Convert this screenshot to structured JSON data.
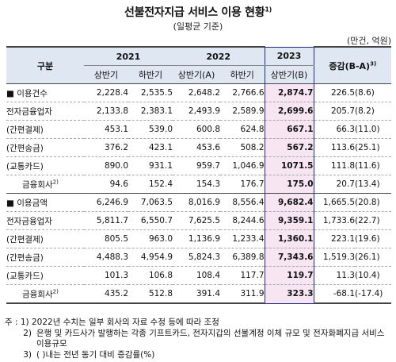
{
  "title": "선불전자지급 서비스 이용 현황",
  "title_note": "1)",
  "subtitle": "(일평균 기준)",
  "unit": "(만건, 억원)",
  "header": {
    "group": "구분",
    "y2021": "2021",
    "y2022": "2022",
    "y2023": "2023",
    "change": "증감(B-A)",
    "change_note": "3)",
    "h1": "상반기",
    "h2": "하반기",
    "h1a": "상반기(A)",
    "h1b": "상반기(B)"
  },
  "rows": [
    {
      "label": "■ 이용건수",
      "v": [
        "2,228.4",
        "2,535.5",
        "2,648.2",
        "2,766.6",
        "2,874.7",
        "226.5",
        "(8.6)"
      ]
    },
    {
      "label": "전자금융업자",
      "v": [
        "2,133.8",
        "2,383.1",
        "2,493.9",
        "2,589.9",
        "2,699.6",
        "205.7",
        "(8.2)"
      ]
    },
    {
      "label": "(간편결제)",
      "v": [
        "453.1",
        "539.0",
        "600.8",
        "624.8",
        "667.1",
        "66.3",
        "(11.0)"
      ]
    },
    {
      "label": "(간편송금)",
      "v": [
        "376.2",
        "423.1",
        "453.6",
        "508.2",
        "567.2",
        "113.6",
        "(25.1)"
      ]
    },
    {
      "label": "(교통카드)",
      "v": [
        "890.0",
        "931.1",
        "959.7",
        "1,046.9",
        "1071.5",
        "111.8",
        "(11.6)"
      ]
    },
    {
      "label": "금융회사",
      "note": "2)",
      "v": [
        "94.6",
        "152.4",
        "154.3",
        "176.7",
        "175.0",
        "20.7",
        "(13.4)"
      ]
    },
    {
      "label": "■ 이용금액",
      "v": [
        "6,246.9",
        "7,063.5",
        "8,016.9",
        "8,556.4",
        "9,682.4",
        "1,665.5",
        "(20.8)"
      ]
    },
    {
      "label": "전자금융업자",
      "v": [
        "5,811.7",
        "6,550.7",
        "7,625.5",
        "8,244.6",
        "9,359.1",
        "1,733.6",
        "(22.7)"
      ]
    },
    {
      "label": "(간편결제)",
      "v": [
        "805.5",
        "963.0",
        "1,136.9",
        "1,233.4",
        "1,360.1",
        "223.1",
        "(19.6)"
      ]
    },
    {
      "label": "(간편송금)",
      "v": [
        "4,488.3",
        "4,954.9",
        "5,824.3",
        "6,389.8",
        "7,343.6",
        "1,519.3",
        "(26.1)"
      ]
    },
    {
      "label": "(교통카드)",
      "v": [
        "101.3",
        "106.8",
        "108.4",
        "117.7",
        "119.7",
        "11.3",
        "(10.4)"
      ]
    },
    {
      "label": "금융회사",
      "note": "2)",
      "v": [
        "435.2",
        "512.8",
        "391.4",
        "311.9",
        "323.3",
        "-68.1",
        "(-17.4)"
      ]
    }
  ],
  "notes": {
    "label": "주 : 1)",
    "n1": "2022년 수치는 일부 회사의 자료 수정 등에 따라 조정",
    "n2_label": "2)",
    "n2": "은행 및 카드사가 발행하는 각종 기프트카드, 전자지갑의 선불계정 이체 규모 및 전자화폐지급 서비스 이용규모",
    "n3_label": "3)",
    "n3": "( )내는 전년 동기 대비 증감률(%)"
  }
}
